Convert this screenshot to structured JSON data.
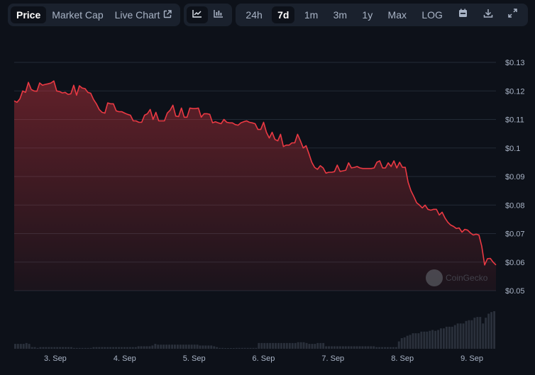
{
  "toolbar": {
    "view_tabs": [
      {
        "label": "Price",
        "active": true
      },
      {
        "label": "Market Cap",
        "active": false
      },
      {
        "label": "Live Chart",
        "active": false,
        "icon": "external-link-icon"
      }
    ],
    "chart_types": [
      {
        "icon": "line-chart-icon",
        "active": true
      },
      {
        "icon": "candlestick-chart-icon",
        "active": false
      }
    ],
    "ranges": [
      {
        "label": "24h",
        "active": false
      },
      {
        "label": "7d",
        "active": true
      },
      {
        "label": "1m",
        "active": false
      },
      {
        "label": "3m",
        "active": false
      },
      {
        "label": "1y",
        "active": false
      },
      {
        "label": "Max",
        "active": false
      },
      {
        "label": "LOG",
        "active": false
      }
    ],
    "actions": [
      {
        "icon": "calendar-icon"
      },
      {
        "icon": "download-icon"
      },
      {
        "icon": "fullscreen-icon"
      }
    ]
  },
  "watermark": "CoinGecko",
  "colors": {
    "background": "#0d1119",
    "toolbar_bg": "#1a212d",
    "line": "#ea3943",
    "grid": "#232a36",
    "axis_text": "#a9b4c6",
    "volume_bar": "#2a303b"
  },
  "chart_data": {
    "type": "line",
    "title": "",
    "xlabel": "",
    "ylabel": "",
    "ylim": [
      0.05,
      0.13
    ],
    "yticks": [
      "$0.13",
      "$0.12",
      "$0.11",
      "$0.1",
      "$0.09",
      "$0.08",
      "$0.07",
      "$0.06",
      "$0.05"
    ],
    "ytick_values": [
      0.13,
      0.12,
      0.11,
      0.1,
      0.09,
      0.08,
      0.07,
      0.06,
      0.05
    ],
    "xticks": [
      "3. Sep",
      "4. Sep",
      "5. Sep",
      "6. Sep",
      "7. Sep",
      "8. Sep",
      "9. Sep"
    ],
    "xtick_positions": [
      0.0853,
      0.2295,
      0.3736,
      0.5176,
      0.6617,
      0.8059,
      0.95
    ],
    "grid": true,
    "legend": null,
    "series": [
      {
        "name": "Price",
        "values": [
          0.1165,
          0.116,
          0.1172,
          0.12,
          0.1195,
          0.123,
          0.1205,
          0.12,
          0.1199,
          0.1228,
          0.122,
          0.1223,
          0.1225,
          0.1228,
          0.1235,
          0.12,
          0.1198,
          0.1193,
          0.1195,
          0.1188,
          0.119,
          0.122,
          0.1185,
          0.1218,
          0.121,
          0.1208,
          0.1195,
          0.1192,
          0.117,
          0.1155,
          0.1135,
          0.1125,
          0.1122,
          0.1158,
          0.1155,
          0.1155,
          0.113,
          0.1127,
          0.1127,
          0.1122,
          0.1118,
          0.1115,
          0.1095,
          0.1095,
          0.109,
          0.109,
          0.1115,
          0.112,
          0.1135,
          0.11,
          0.1125,
          0.1095,
          0.1095,
          0.1095,
          0.1122,
          0.1132,
          0.115,
          0.1112,
          0.111,
          0.114,
          0.1108,
          0.1108,
          0.114,
          0.1138,
          0.1138,
          0.114,
          0.1108,
          0.112,
          0.112,
          0.1118,
          0.1088,
          0.1092,
          0.1088,
          0.1085,
          0.11,
          0.109,
          0.1088,
          0.1088,
          0.1082,
          0.108,
          0.1088,
          0.1092,
          0.1095,
          0.109,
          0.1088,
          0.1085,
          0.1065,
          0.1065,
          0.109,
          0.1055,
          0.1035,
          0.1055,
          0.103,
          0.1025,
          0.1048,
          0.1005,
          0.101,
          0.101,
          0.1018,
          0.1018,
          0.1048,
          0.1025,
          0.1,
          0.1008,
          0.098,
          0.095,
          0.0932,
          0.0925,
          0.0938,
          0.093,
          0.0912,
          0.0915,
          0.0915,
          0.0917,
          0.094,
          0.0918,
          0.092,
          0.0922,
          0.0948,
          0.093,
          0.0932,
          0.0935,
          0.093,
          0.0928,
          0.0928,
          0.0928,
          0.0928,
          0.093,
          0.095,
          0.0955,
          0.093,
          0.093,
          0.0948,
          0.0935,
          0.0955,
          0.093,
          0.095,
          0.0932,
          0.0932,
          0.088,
          0.085,
          0.083,
          0.0808,
          0.08,
          0.079,
          0.08,
          0.0785,
          0.0782,
          0.0785,
          0.0785,
          0.0765,
          0.0775,
          0.0755,
          0.074,
          0.073,
          0.0725,
          0.0718,
          0.072,
          0.0705,
          0.0715,
          0.0712,
          0.0702,
          0.0695,
          0.0698,
          0.0695,
          0.0655,
          0.059,
          0.0612,
          0.0613,
          0.06,
          0.059
        ]
      },
      {
        "name": "Volume",
        "values": [
          6,
          6,
          6,
          6,
          7,
          6,
          2,
          2,
          1,
          2,
          2,
          2,
          2,
          2,
          2,
          2,
          2,
          2,
          2,
          2,
          2,
          1,
          1,
          1,
          1,
          1,
          1,
          1,
          2,
          2,
          2,
          2,
          2,
          2,
          2,
          2,
          2,
          2,
          2,
          2,
          2,
          2,
          2,
          2,
          3,
          3,
          3,
          3,
          3,
          4,
          6,
          5,
          5,
          5,
          5,
          5,
          5,
          5,
          5,
          5,
          5,
          5,
          5,
          5,
          5,
          5,
          4,
          4,
          4,
          4,
          4,
          3,
          2,
          1,
          1,
          0,
          0,
          0,
          0,
          1,
          1,
          1,
          1,
          1,
          1,
          1,
          1,
          7,
          7,
          7,
          7,
          7,
          7,
          7,
          7,
          7,
          7,
          7,
          7,
          7,
          7,
          8,
          8,
          8,
          7,
          6,
          6,
          6,
          7,
          7,
          7,
          3,
          3,
          3,
          3,
          3,
          3,
          3,
          3,
          3,
          3,
          3,
          3,
          3,
          3,
          3,
          3,
          3,
          3,
          2,
          2,
          2,
          2,
          2,
          2,
          2,
          2,
          9,
          13,
          14,
          16,
          17,
          19,
          19,
          19,
          21,
          21,
          21,
          22,
          23,
          22,
          23,
          25,
          25,
          27,
          27,
          27,
          29,
          31,
          31,
          31,
          34,
          35,
          35,
          38,
          39,
          39,
          31,
          38,
          43,
          45,
          46
        ]
      }
    ]
  }
}
